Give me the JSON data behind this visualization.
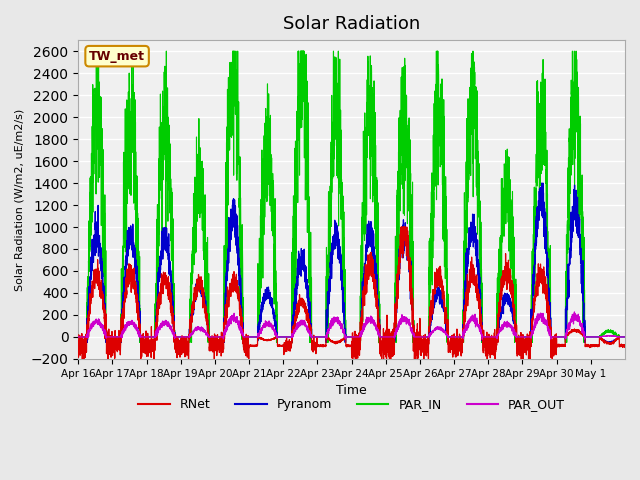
{
  "title": "Solar Radiation",
  "ylabel": "Solar Radiation (W/m2, uE/m2/s)",
  "xlabel": "Time",
  "ylim": [
    -200,
    2700
  ],
  "yticks": [
    -200,
    0,
    200,
    400,
    600,
    800,
    1000,
    1200,
    1400,
    1600,
    1800,
    2000,
    2200,
    2400,
    2600
  ],
  "background_color": "#e8e8e8",
  "plot_bg_color": "#f0f0f0",
  "series_colors": {
    "RNet": "#dd0000",
    "Pyranom": "#0000cc",
    "PAR_IN": "#00cc00",
    "PAR_OUT": "#cc00cc"
  },
  "legend_label": "TW_met",
  "legend_box_color": "#ffffcc",
  "legend_box_border": "#cc8800",
  "tick_labels": [
    "Apr 16",
    "Apr 17",
    "Apr 18",
    "Apr 19",
    "Apr 20",
    "Apr 21",
    "Apr 22",
    "Apr 23",
    "Apr 24",
    "Apr 25",
    "Apr 26",
    "Apr 27",
    "Apr 28",
    "Apr 29",
    "Apr 30",
    "May 1"
  ],
  "RNet_peaks": [
    560,
    580,
    520,
    480,
    510,
    -30,
    310,
    -50,
    660,
    940,
    550,
    570,
    600,
    580,
    60,
    -60
  ],
  "Pyranom_peaks": [
    920,
    920,
    900,
    480,
    1080,
    400,
    700,
    930,
    950,
    950,
    400,
    1000,
    360,
    1270,
    1170,
    -50
  ],
  "PAR_IN_peaks": [
    2060,
    2030,
    2000,
    1360,
    2420,
    1640,
    2400,
    2070,
    2100,
    2100,
    2100,
    2180,
    1360,
    1950,
    2250,
    50
  ],
  "PAR_OUT_peaks": [
    140,
    130,
    130,
    80,
    170,
    120,
    130,
    160,
    160,
    165,
    80,
    170,
    120,
    185,
    185,
    10
  ],
  "night_min_RNet": -80
}
